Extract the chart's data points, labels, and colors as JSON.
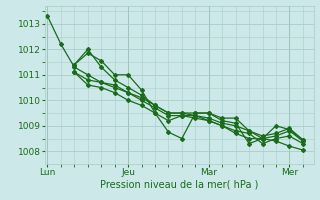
{
  "xlabel": "Pression niveau de la mer( hPa )",
  "bg_color": "#cce8e8",
  "line_color": "#1a6b1a",
  "grid_color": "#aacccc",
  "tick_label_color": "#1a6b1a",
  "xtick_labels": [
    "Lun",
    "Jeu",
    "Mar",
    "Mer"
  ],
  "xtick_positions": [
    0,
    3,
    6,
    9
  ],
  "ylim": [
    1007.5,
    1013.7
  ],
  "xlim": [
    -0.1,
    9.9
  ],
  "yticks": [
    1008,
    1009,
    1010,
    1011,
    1012,
    1013
  ],
  "lines": [
    [
      0.0,
      1013.3,
      0.5,
      1012.2,
      1.0,
      1011.3,
      1.5,
      1011.0,
      2.0,
      1010.7,
      2.5,
      1010.5,
      3.0,
      1010.3,
      3.5,
      1010.1,
      4.0,
      1009.8,
      4.5,
      1009.5,
      5.0,
      1009.5,
      5.5,
      1009.4,
      6.0,
      1009.2,
      6.5,
      1009.0,
      7.0,
      1008.7,
      7.5,
      1008.5,
      8.0,
      1008.5,
      8.5,
      1008.4,
      9.0,
      1008.2,
      9.5,
      1008.05
    ],
    [
      1.0,
      1011.4,
      1.5,
      1011.85,
      2.0,
      1011.55,
      2.5,
      1011.0,
      3.0,
      1011.0,
      3.5,
      1010.4,
      4.0,
      1009.5,
      4.5,
      1008.75,
      5.0,
      1008.5,
      5.5,
      1009.5,
      6.0,
      1009.5,
      6.5,
      1009.2,
      7.0,
      1009.1,
      7.5,
      1008.3,
      8.0,
      1008.5,
      8.5,
      1009.0,
      9.0,
      1008.85,
      9.5,
      1008.45
    ],
    [
      1.0,
      1011.4,
      1.5,
      1012.0,
      2.0,
      1011.3,
      2.5,
      1010.8,
      3.0,
      1010.5,
      3.5,
      1010.2,
      4.0,
      1009.8,
      4.5,
      1009.5,
      5.0,
      1009.5,
      5.5,
      1009.5,
      6.0,
      1009.5,
      6.5,
      1009.3,
      7.0,
      1009.3,
      7.5,
      1008.8,
      8.0,
      1008.6,
      8.5,
      1008.7,
      9.0,
      1008.9,
      9.5,
      1008.45
    ],
    [
      1.0,
      1011.1,
      1.5,
      1010.8,
      2.0,
      1010.7,
      2.5,
      1010.6,
      3.0,
      1010.3,
      3.5,
      1010.0,
      4.0,
      1009.7,
      4.5,
      1009.4,
      5.0,
      1009.4,
      5.5,
      1009.4,
      6.0,
      1009.3,
      6.5,
      1009.1,
      7.0,
      1009.0,
      7.5,
      1008.8,
      8.0,
      1008.5,
      8.5,
      1008.6,
      9.0,
      1008.8,
      9.5,
      1008.4
    ],
    [
      1.0,
      1011.1,
      1.5,
      1010.6,
      2.0,
      1010.5,
      2.5,
      1010.3,
      3.0,
      1010.0,
      3.5,
      1009.8,
      4.0,
      1009.5,
      4.5,
      1009.2,
      5.0,
      1009.4,
      5.5,
      1009.3,
      6.0,
      1009.2,
      6.5,
      1009.0,
      7.0,
      1008.8,
      7.5,
      1008.7,
      8.0,
      1008.3,
      8.5,
      1008.5,
      9.0,
      1008.6,
      9.5,
      1008.3
    ]
  ]
}
